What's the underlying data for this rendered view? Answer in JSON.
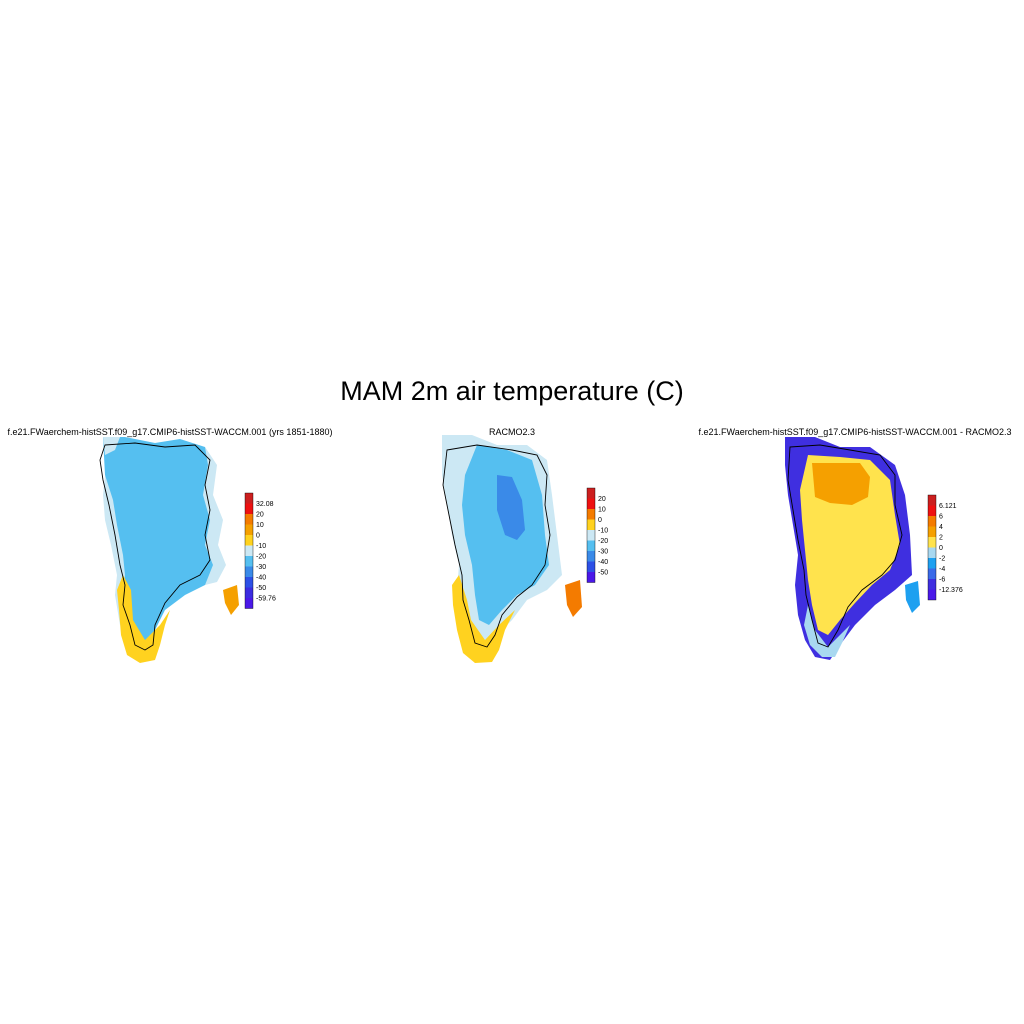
{
  "title": "MAM 2m air temperature (C)",
  "panels": [
    {
      "id": "model",
      "title": "f.e21.FWaerchem-histSST.f09_g17.CMIP6-histSST-WACCM.001 (yrs 1851-1880)",
      "colorbar": {
        "labels": [
          "32.08",
          "20",
          "10",
          "0",
          "-10",
          "-20",
          "-30",
          "-40",
          "-50",
          "-59.76"
        ],
        "colors": [
          "#cc1f1f",
          "#ee1111",
          "#f47b00",
          "#f5a000",
          "#ffd21f",
          "#cce8f4",
          "#55bff0",
          "#3a8ae8",
          "#2d50e6",
          "#3b2ce0",
          "#4a18e8"
        ]
      }
    },
    {
      "id": "racmo",
      "title": "RACMO2.3",
      "colorbar": {
        "labels": [
          "20",
          "10",
          "0",
          "-10",
          "-20",
          "-30",
          "-40",
          "-50"
        ],
        "colors": [
          "#cc1f1f",
          "#ee1111",
          "#f47b00",
          "#ffd21f",
          "#cce8f4",
          "#55bff0",
          "#3a8ae8",
          "#2d50e6",
          "#4a18e8"
        ]
      }
    },
    {
      "id": "diff",
      "title": "f.e21.FWaerchem-histSST.f09_g17.CMIP6-histSST-WACCM.001 - RACMO2.3",
      "colorbar": {
        "labels": [
          "6.121",
          "6",
          "4",
          "2",
          "0",
          "-2",
          "-4",
          "-6",
          "-12.376"
        ],
        "colors": [
          "#cc1f1f",
          "#ee1111",
          "#f47b00",
          "#f5a000",
          "#ffe34d",
          "#a8d8f0",
          "#1ea0f0",
          "#3a6ae8",
          "#3f2fe0",
          "#4a18e8"
        ]
      }
    }
  ]
}
